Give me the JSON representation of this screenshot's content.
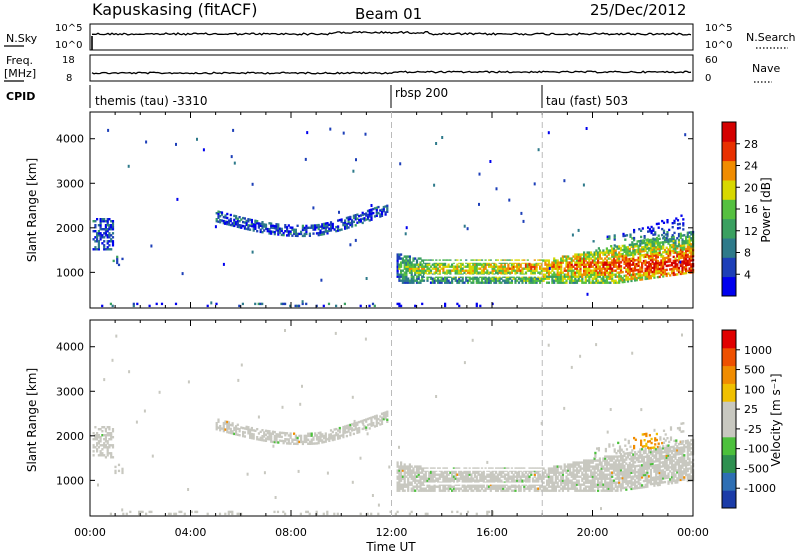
{
  "header": {
    "station": "Kapuskasing (fitACF)",
    "beam": "Beam 01",
    "date": "25/Dec/2012"
  },
  "top_panels": {
    "nsky": {
      "left_label": "N.Sky",
      "left_ticks": [
        "10^5",
        "10^0"
      ],
      "right_ticks": [
        "10^5",
        "10^0"
      ],
      "right_label": "N.Search",
      "right_label_style": "dotted"
    },
    "freq": {
      "left_label_1": "Freq.",
      "left_label_2": "[MHz]",
      "left_ticks": [
        "18",
        "8"
      ],
      "right_ticks": [
        "60",
        "0"
      ],
      "right_label": "Nave",
      "right_label_style": "dotted"
    },
    "cpid": {
      "label": "CPID",
      "segments": [
        {
          "start_hour": 0,
          "text": "themis (tau) -3310"
        },
        {
          "start_hour": 12,
          "text": "rbsp 200"
        },
        {
          "start_hour": 18,
          "text": "tau (fast) 503"
        }
      ]
    }
  },
  "chart_data": [
    {
      "type": "heatmap",
      "name": "power",
      "ylabel": "Slant Range [km]",
      "yticks": [
        1000,
        2000,
        3000,
        4000
      ],
      "ylim": [
        200,
        4600
      ],
      "xlim_hours": [
        0,
        24
      ],
      "colorbar": {
        "label": "Power [dB]",
        "ticks": [
          "4",
          "8",
          "12",
          "16",
          "20",
          "24",
          "28"
        ],
        "colors": [
          "#0000ee",
          "#1d3fb8",
          "#2e7a8a",
          "#3aa060",
          "#55c040",
          "#d8d800",
          "#f08c00",
          "#e83000",
          "#d40000"
        ]
      },
      "dashed_vlines_hours": [
        12,
        18
      ],
      "description_features": [
        {
          "hours": [
            0.1,
            0.9
          ],
          "range_km": [
            1500,
            2200
          ]
        },
        {
          "hours": [
            5.0,
            11.8
          ],
          "range_km": [
            1800,
            2400
          ]
        },
        {
          "hours": [
            12.2,
            24
          ],
          "range_km": [
            700,
            1500
          ]
        }
      ]
    },
    {
      "type": "heatmap",
      "name": "velocity",
      "ylabel": "Slant Range [km]",
      "yticks": [
        1000,
        2000,
        3000,
        4000
      ],
      "ylim": [
        200,
        4600
      ],
      "xlim_hours": [
        0,
        24
      ],
      "xlabel": "Time UT",
      "xticks": [
        "00:00",
        "04:00",
        "08:00",
        "12:00",
        "16:00",
        "20:00",
        "00:00"
      ],
      "colorbar": {
        "label": "Velocity [m s⁻¹]",
        "ticks": [
          "1000",
          "500",
          "100",
          "25",
          "-25",
          "-100",
          "-500",
          "-1000"
        ],
        "colors": [
          "#1b3ca8",
          "#2e6fb4",
          "#2e9050",
          "#4cc03c",
          "#c8c8c0",
          "#c8c8c0",
          "#f0c000",
          "#f08c00",
          "#ee5000",
          "#e00000"
        ]
      },
      "dashed_vlines_hours": [
        12,
        18
      ]
    }
  ]
}
